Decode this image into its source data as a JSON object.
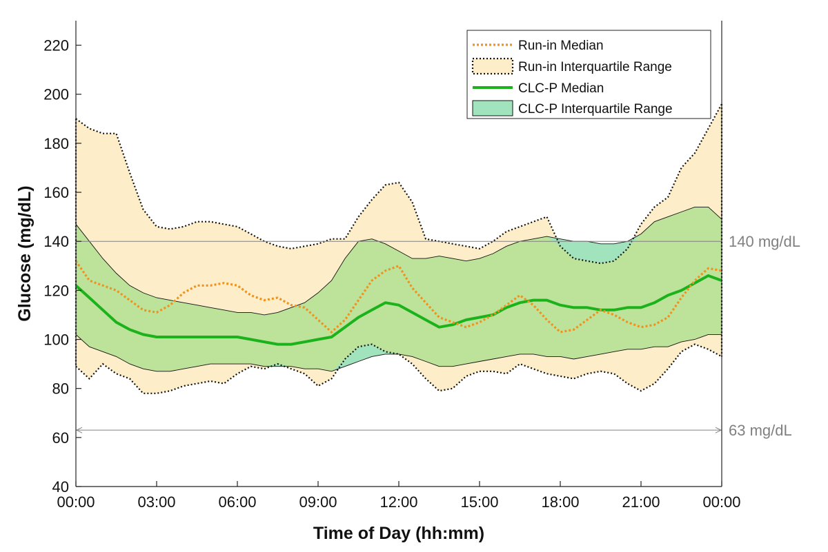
{
  "chart_data": {
    "type": "area",
    "title": "",
    "xlabel": "Time of Day (hh:mm)",
    "ylabel": "Glucose (mg/dL)",
    "xlim": [
      0,
      24
    ],
    "ylim": [
      40,
      230
    ],
    "x_tick_values": [
      0,
      3,
      6,
      9,
      12,
      15,
      18,
      21,
      24
    ],
    "x_tick_labels": [
      "00:00",
      "03:00",
      "06:00",
      "09:00",
      "12:00",
      "15:00",
      "18:00",
      "21:00",
      "00:00"
    ],
    "y_ticks": [
      40,
      60,
      80,
      100,
      120,
      140,
      160,
      180,
      200,
      220
    ],
    "grid": false,
    "legend_position": "top-right",
    "reference_lines": [
      {
        "y": 140,
        "label": "140 mg/dL",
        "color": "#808080",
        "arrows": false
      },
      {
        "y": 63,
        "label": "63 mg/dL",
        "color": "#808080",
        "arrows": true
      }
    ],
    "x": [
      0,
      0.5,
      1,
      1.5,
      2,
      2.5,
      3,
      3.5,
      4,
      4.5,
      5,
      5.5,
      6,
      6.5,
      7,
      7.5,
      8,
      8.5,
      9,
      9.5,
      10,
      10.5,
      11,
      11.5,
      12,
      12.5,
      13,
      13.5,
      14,
      14.5,
      15,
      15.5,
      16,
      16.5,
      17,
      17.5,
      18,
      18.5,
      19,
      19.5,
      20,
      20.5,
      21,
      21.5,
      22,
      22.5,
      23,
      23.5,
      24
    ],
    "series": [
      {
        "name": "Run-in Median",
        "role": "median",
        "color": "#f0921e",
        "style": "dotted",
        "values": [
          132,
          124,
          122,
          120,
          116,
          112,
          111,
          114,
          119,
          122,
          122,
          123,
          122,
          118,
          116,
          117,
          114,
          113,
          108,
          103,
          108,
          116,
          124,
          128,
          130,
          121,
          115,
          109,
          107,
          105,
          107,
          110,
          114,
          118,
          114,
          108,
          103,
          104,
          108,
          112,
          110,
          107,
          105,
          106,
          109,
          117,
          124,
          129,
          128
        ]
      },
      {
        "name": "Run-in Interquartile Range",
        "role": "iqr",
        "color": "#fdedc8",
        "border": "#111111",
        "style": "dotted",
        "upper": [
          190,
          186,
          184,
          184,
          168,
          153,
          146,
          145,
          146,
          148,
          148,
          147,
          146,
          143,
          140,
          138,
          137,
          138,
          139,
          141,
          141,
          150,
          157,
          163,
          164,
          156,
          141,
          140,
          139,
          138,
          137,
          140,
          144,
          146,
          148,
          150,
          138,
          133,
          132,
          131,
          132,
          137,
          147,
          154,
          158,
          170,
          176,
          186,
          196
        ],
        "lower": [
          89,
          84,
          90,
          86,
          84,
          78,
          78,
          79,
          81,
          82,
          83,
          82,
          86,
          89,
          88,
          90,
          88,
          86,
          81,
          84,
          92,
          97,
          98,
          95,
          94,
          90,
          84,
          79,
          80,
          85,
          87,
          87,
          86,
          90,
          88,
          86,
          85,
          84,
          86,
          87,
          86,
          82,
          79,
          82,
          88,
          95,
          98,
          96,
          93
        ]
      },
      {
        "name": "CLC-P Median",
        "role": "median",
        "color": "#1bb21b",
        "style": "solid",
        "values": [
          122,
          117,
          112,
          107,
          104,
          102,
          101,
          101,
          101,
          101,
          101,
          101,
          101,
          100,
          99,
          98,
          98,
          99,
          100,
          101,
          105,
          109,
          112,
          115,
          114,
          111,
          108,
          105,
          106,
          108,
          109,
          110,
          113,
          115,
          116,
          116,
          114,
          113,
          113,
          112,
          112,
          113,
          113,
          115,
          118,
          120,
          123,
          126,
          124
        ]
      },
      {
        "name": "CLC-P Interquartile Range",
        "role": "iqr",
        "color": "#a0e3bc",
        "border": "#111111",
        "style": "solid",
        "upper": [
          147,
          140,
          133,
          127,
          122,
          119,
          117,
          116,
          115,
          114,
          113,
          112,
          111,
          111,
          110,
          111,
          113,
          115,
          119,
          124,
          133,
          140,
          141,
          139,
          136,
          133,
          133,
          134,
          133,
          132,
          133,
          135,
          138,
          140,
          141,
          142,
          141,
          140,
          140,
          139,
          139,
          140,
          143,
          148,
          150,
          152,
          154,
          154,
          149
        ],
        "lower": [
          102,
          97,
          95,
          93,
          90,
          88,
          87,
          87,
          88,
          89,
          90,
          90,
          90,
          90,
          89,
          89,
          89,
          88,
          88,
          87,
          89,
          91,
          93,
          94,
          94,
          93,
          91,
          89,
          89,
          90,
          91,
          92,
          93,
          94,
          94,
          93,
          93,
          92,
          93,
          94,
          95,
          96,
          96,
          97,
          97,
          99,
          100,
          102,
          102
        ]
      }
    ]
  }
}
